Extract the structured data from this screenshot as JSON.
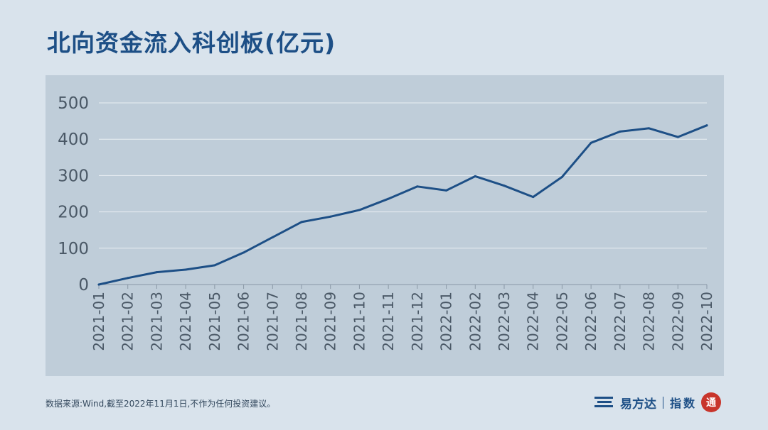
{
  "title": "北向资金流入科创板(亿元)",
  "footer_note": "数据来源:Wind,截至2022年11月1日,不作为任何投资建议。",
  "brand": {
    "name": "易方达",
    "sub": "指数",
    "seal_char": "通"
  },
  "colors": {
    "line": "#1d4f86",
    "title": "#1d4f86",
    "panel": "#bfcdd9",
    "page": "#d9e3ec",
    "seal": "#c8352b"
  },
  "chart_data": {
    "type": "line",
    "title": "北向资金流入科创板(亿元)",
    "xlabel": "",
    "ylabel": "",
    "ylim": [
      0,
      500
    ],
    "yticks": [
      0,
      100,
      200,
      300,
      400,
      500
    ],
    "grid": true,
    "categories": [
      "2021-01",
      "2021-02",
      "2021-03",
      "2021-04",
      "2021-05",
      "2021-06",
      "2021-07",
      "2021-08",
      "2021-09",
      "2021-10",
      "2021-11",
      "2021-12",
      "2022-01",
      "2022-02",
      "2022-03",
      "2022-04",
      "2022-05",
      "2022-06",
      "2022-07",
      "2022-08",
      "2022-09",
      "2022-10"
    ],
    "series": [
      {
        "name": "",
        "values": [
          0,
          18,
          34,
          41,
          53,
          88,
          130,
          172,
          187,
          205,
          236,
          270,
          259,
          298,
          272,
          241,
          296,
          390,
          421,
          430,
          406,
          438
        ]
      }
    ]
  }
}
